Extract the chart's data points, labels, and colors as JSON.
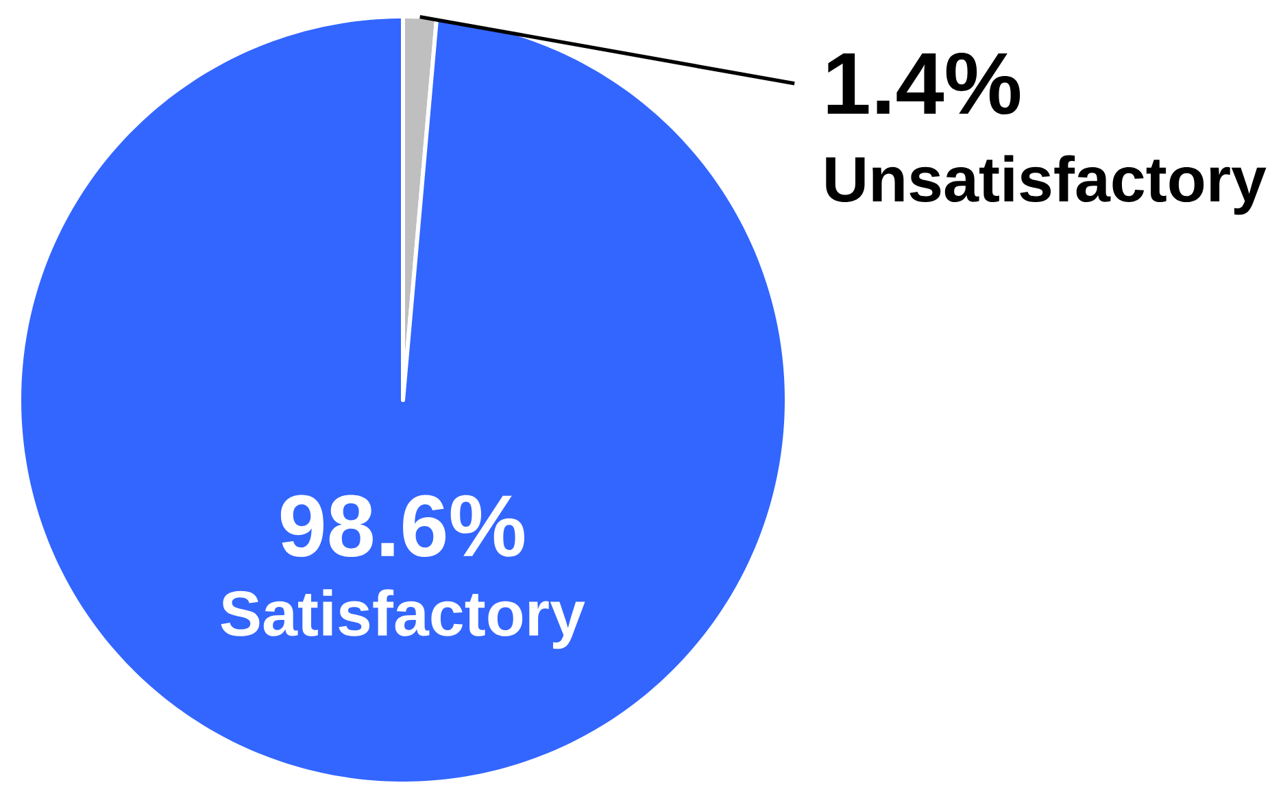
{
  "chart_data": {
    "type": "pie",
    "categories": [
      "Unsatisfactory",
      "Satisfactory"
    ],
    "values": [
      1.4,
      98.6
    ],
    "colors": [
      "#bfbfbf",
      "#3366ff"
    ],
    "value_labels": [
      "1.4%",
      "98.6%"
    ]
  }
}
